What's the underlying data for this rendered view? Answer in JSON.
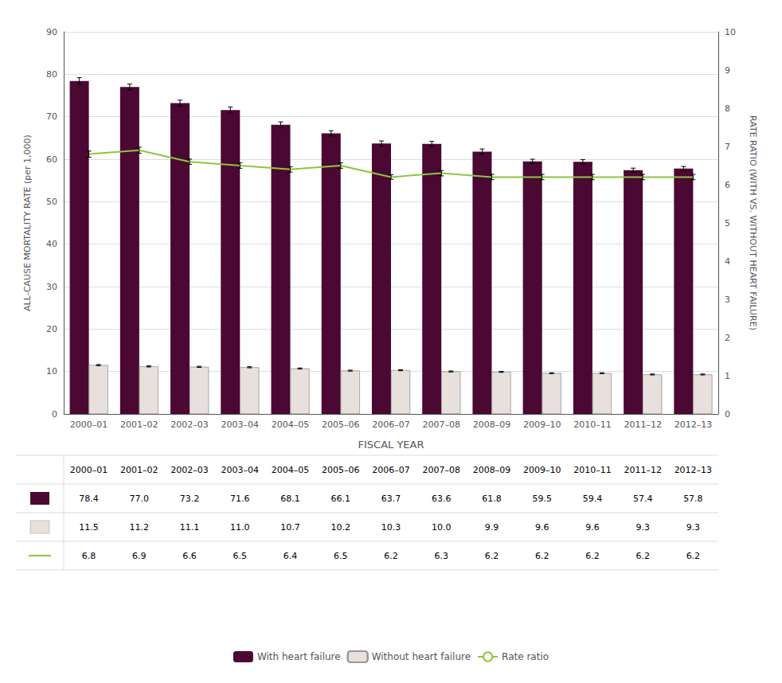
{
  "chart_data": {
    "type": "bar",
    "x_label": "FISCAL YEAR",
    "y_label": "ALL-CAUSE MORTALITY RATE (per 1,000)",
    "y2_label": "RATE RATIO (WITH VS. WITHOUT HEART FAILURE)",
    "categories": [
      "2000–01",
      "2001–02",
      "2002–03",
      "2003–04",
      "2004–05",
      "2005–06",
      "2006–07",
      "2007–08",
      "2008–09",
      "2009–10",
      "2010–11",
      "2011–12",
      "2012–13"
    ],
    "series": [
      {
        "name": "With heart failure",
        "type": "bar",
        "color": "#4B0832",
        "values": [
          78.4,
          77.0,
          73.2,
          71.6,
          68.1,
          66.1,
          63.7,
          63.6,
          61.8,
          59.5,
          59.4,
          57.4,
          57.8
        ],
        "value_labels": [
          "78.4",
          "77.0",
          "73.2",
          "71.6",
          "68.1",
          "66.1",
          "63.7",
          "63.6",
          "61.8",
          "59.5",
          "59.4",
          "57.4",
          "57.8"
        ],
        "errors": [
          0.8,
          0.7,
          0.7,
          0.7,
          0.7,
          0.6,
          0.6,
          0.6,
          0.6,
          0.5,
          0.5,
          0.5,
          0.5
        ]
      },
      {
        "name": "Without heart failure",
        "type": "bar",
        "color": "#E8E0DC",
        "values": [
          11.5,
          11.2,
          11.1,
          11.0,
          10.7,
          10.2,
          10.3,
          10.0,
          9.9,
          9.6,
          9.6,
          9.3,
          9.3
        ],
        "value_labels": [
          "11.5",
          "11.2",
          "11.1",
          "11.0",
          "10.7",
          "10.2",
          "10.3",
          "10.0",
          "9.9",
          "9.6",
          "9.6",
          "9.3",
          "9.3"
        ],
        "errors": [
          0.15,
          0.14,
          0.13,
          0.13,
          0.13,
          0.12,
          0.12,
          0.12,
          0.12,
          0.11,
          0.11,
          0.11,
          0.11
        ]
      },
      {
        "name": "Rate ratio",
        "type": "line",
        "axis": "y2",
        "color": "#8DC63F",
        "values": [
          6.8,
          6.9,
          6.6,
          6.5,
          6.4,
          6.5,
          6.2,
          6.3,
          6.2,
          6.2,
          6.2,
          6.2,
          6.2
        ],
        "value_labels": [
          "6.8",
          "6.9",
          "6.6",
          "6.5",
          "6.4",
          "6.5",
          "6.2",
          "6.3",
          "6.2",
          "6.2",
          "6.2",
          "6.2",
          "6.2"
        ],
        "errors": [
          0.08,
          0.08,
          0.07,
          0.07,
          0.07,
          0.07,
          0.06,
          0.07,
          0.07,
          0.07,
          0.07,
          0.07,
          0.07
        ]
      }
    ],
    "ylim": [
      0,
      90
    ],
    "yticks": [
      0,
      10,
      20,
      30,
      40,
      50,
      60,
      70,
      80,
      90
    ],
    "y2lim": [
      0,
      10
    ],
    "y2ticks": [
      0,
      1,
      2,
      3,
      4,
      5,
      6,
      7,
      8,
      9,
      10
    ],
    "grid": true,
    "legend": "bottom"
  }
}
